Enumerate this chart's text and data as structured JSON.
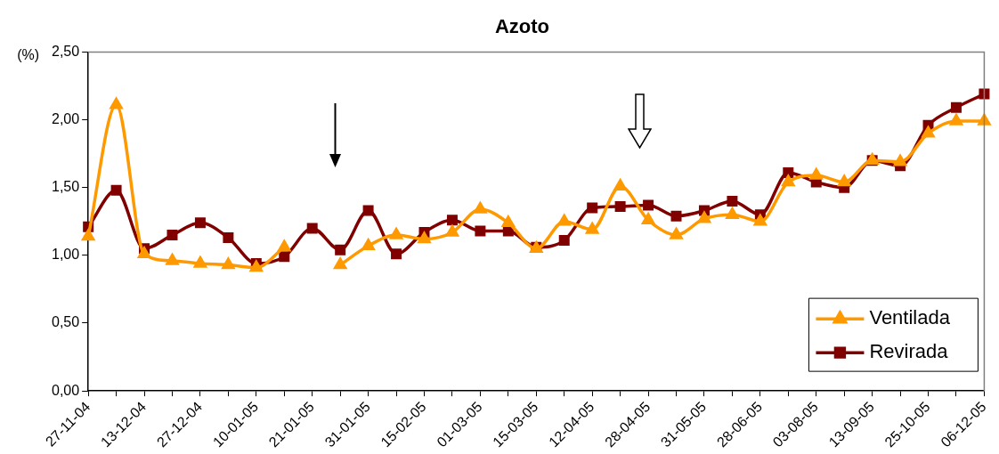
{
  "chart_data": {
    "type": "line",
    "title": "Azoto",
    "ylabel": "(%)",
    "categories": [
      "27-11-04",
      null,
      "13-12-04",
      null,
      "27-12-04",
      null,
      "10-01-05",
      null,
      "21-01-05",
      null,
      "31-01-05",
      null,
      "15-02-05",
      null,
      "01-03-05",
      null,
      "15-03-05",
      null,
      "12-04-05",
      null,
      "28-04-05",
      null,
      "31-05-05",
      null,
      "28-06-05",
      null,
      "03-08-05",
      null,
      "13-09-05",
      null,
      "25-10-05",
      null,
      "06-12-05"
    ],
    "series": [
      {
        "name": "Ventilada",
        "color": "#ff9900",
        "marker": "triangle",
        "values": [
          1.14,
          2.11,
          1.01,
          0.96,
          0.94,
          0.93,
          0.91,
          1.06,
          null,
          0.93,
          1.07,
          1.15,
          1.12,
          1.17,
          1.34,
          1.24,
          1.05,
          1.25,
          1.19,
          1.51,
          1.26,
          1.15,
          1.27,
          1.3,
          1.25,
          1.54,
          1.59,
          1.54,
          1.7,
          1.69,
          1.9,
          1.99,
          1.99
        ]
      },
      {
        "name": "Revirada",
        "color": "#800000",
        "marker": "square",
        "values": [
          1.21,
          1.48,
          1.05,
          1.15,
          1.24,
          1.13,
          0.94,
          0.99,
          1.2,
          1.04,
          1.33,
          1.01,
          1.17,
          1.26,
          1.18,
          1.18,
          1.06,
          1.11,
          1.35,
          1.36,
          1.37,
          1.29,
          1.33,
          1.4,
          1.3,
          1.61,
          1.54,
          1.5,
          1.7,
          1.66,
          1.96,
          2.09,
          2.19
        ]
      }
    ],
    "ylim": [
      0,
      2.5
    ],
    "yticks": [
      {
        "value": 0,
        "label": "0,00"
      },
      {
        "value": 0.5,
        "label": "0,50"
      },
      {
        "value": 1,
        "label": "1,00"
      },
      {
        "value": 1.5,
        "label": "1,50"
      },
      {
        "value": 2,
        "label": "2,00"
      },
      {
        "value": 2.5,
        "label": "2,50"
      }
    ],
    "grid": false,
    "legend": "bottom right",
    "line_style": "solid"
  }
}
